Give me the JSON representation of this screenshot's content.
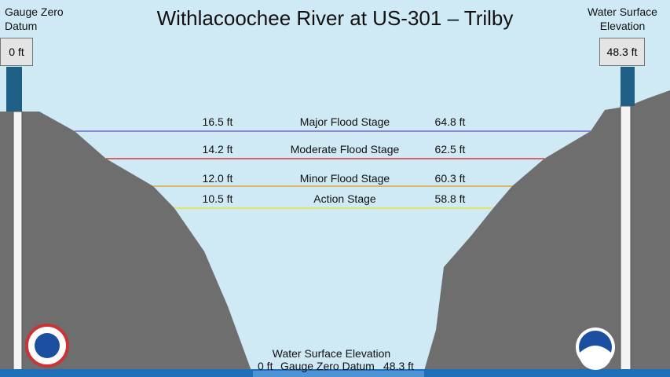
{
  "title": "Withlacoochee River at US-301 – Trilby",
  "left_gauge": {
    "label": "Gauge Zero Datum",
    "value": "0 ft"
  },
  "right_gauge": {
    "label": "Water Surface Elevation",
    "value": "48.3 ft"
  },
  "stages": [
    {
      "depth": "16.5 ft",
      "name": "Major Flood Stage",
      "elevation": "64.8 ft",
      "color": "#7a68c4"
    },
    {
      "depth": "14.2 ft",
      "name": "Moderate Flood Stage",
      "elevation": "62.5 ft",
      "color": "#d23a3a"
    },
    {
      "depth": "12.0 ft",
      "name": "Minor Flood Stage",
      "elevation": "60.3 ft",
      "color": "#e2a83a"
    },
    {
      "depth": "10.5 ft",
      "name": "Action Stage",
      "elevation": "58.8 ft",
      "color": "#e4e44a"
    }
  ],
  "bottom": {
    "label": "Water Surface Elevation",
    "zero": "0 ft",
    "datum": "Gauge Zero Datum",
    "elevation": "48.3 ft"
  }
}
